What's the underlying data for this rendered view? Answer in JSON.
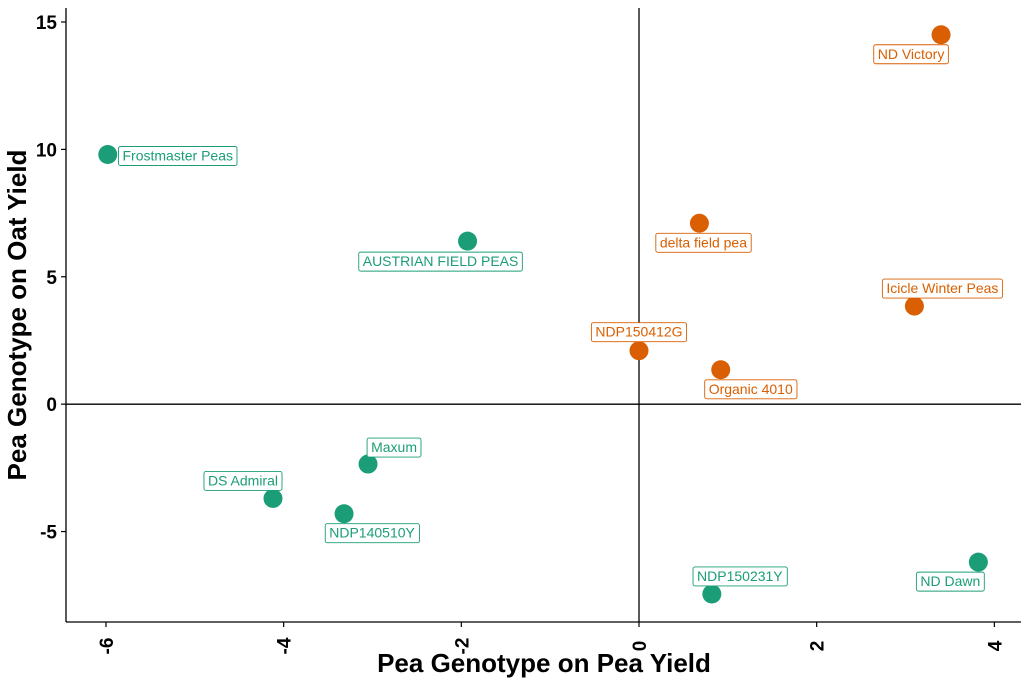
{
  "chart_data": {
    "type": "scatter",
    "xlabel": "Pea Genotype on Pea Yield",
    "ylabel": "Pea Genotype on Oat Yield",
    "xlim": [
      -6.45,
      4.3
    ],
    "ylim": [
      -8.55,
      15.55
    ],
    "xticks": [
      -6,
      -4,
      -2,
      0,
      2,
      4
    ],
    "yticks": [
      -5,
      0,
      5,
      10,
      15
    ],
    "reference_lines": {
      "x": 0,
      "y": 0
    },
    "grid": false,
    "legend": "none",
    "colors": {
      "green": "#1b9e77",
      "orange": "#d95f02"
    },
    "points": [
      {
        "label": "ND Victory",
        "x": 3.4,
        "y": 14.5,
        "group": "orange"
      },
      {
        "label": "Frostmaster Peas",
        "x": -5.98,
        "y": 9.8,
        "group": "green"
      },
      {
        "label": "delta field pea",
        "x": 0.68,
        "y": 7.1,
        "group": "orange"
      },
      {
        "label": "AUSTRIAN FIELD PEAS",
        "x": -1.93,
        "y": 6.4,
        "group": "green"
      },
      {
        "label": "Icicle Winter Peas",
        "x": 3.1,
        "y": 3.85,
        "group": "orange"
      },
      {
        "label": "NDP150412G",
        "x": 0.0,
        "y": 2.1,
        "group": "orange"
      },
      {
        "label": "Organic 4010",
        "x": 0.92,
        "y": 1.35,
        "group": "orange"
      },
      {
        "label": "Maxum",
        "x": -3.05,
        "y": -2.35,
        "group": "green"
      },
      {
        "label": "DS Admiral",
        "x": -4.12,
        "y": -3.7,
        "group": "green"
      },
      {
        "label": "NDP140510Y",
        "x": -3.32,
        "y": -4.3,
        "group": "green"
      },
      {
        "label": "NDP150231Y",
        "x": 0.82,
        "y": -7.45,
        "group": "green"
      },
      {
        "label": "ND Dawn",
        "x": 3.82,
        "y": -6.2,
        "group": "green"
      }
    ]
  }
}
